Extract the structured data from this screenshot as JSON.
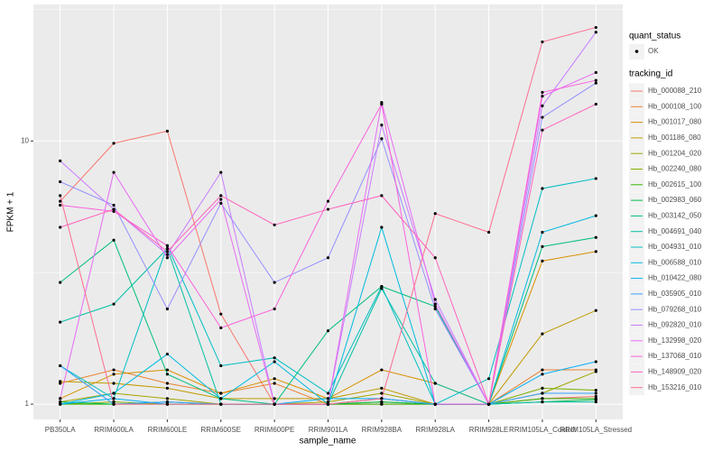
{
  "chart_data": {
    "type": "line",
    "x_label": "sample_name",
    "y_label": "FPKM + 1",
    "categories": [
      "PB350LA",
      "RRIM600LA",
      "RRIM600LE",
      "RRIM600SE",
      "RRIM600PE",
      "RRIM901LA",
      "RRIM928BA",
      "RRIM928LA",
      "RRIM928LE",
      "RRIM105LA_Control",
      "RRIM105LA_Stressed"
    ],
    "ylim": [
      0.875,
      33
    ],
    "yticks": [
      1,
      10
    ],
    "log_y": true,
    "grid": true,
    "point_color": "#000000",
    "shape_legend": {
      "title": "quant_status",
      "labels": [
        "OK"
      ]
    },
    "color_legend_title": "tracking_id",
    "series": [
      {
        "name": "Hb_000088_210",
        "color": "#F8766D",
        "values": [
          5.9,
          9.8,
          10.9,
          2.2,
          1.0,
          1.0,
          1.0,
          1.0,
          1.0,
          1.05,
          1.07
        ]
      },
      {
        "name": "Hb_000108_100",
        "color": "#EA8331",
        "values": [
          1.2,
          1.35,
          1.2,
          1.1,
          1.2,
          1.0,
          1.05,
          1.0,
          1.0,
          1.35,
          1.35
        ]
      },
      {
        "name": "Hb_001017_080",
        "color": "#D89000",
        "values": [
          1.05,
          1.3,
          1.35,
          1.1,
          1.25,
          1.05,
          1.35,
          1.2,
          1.0,
          3.5,
          3.8
        ]
      },
      {
        "name": "Hb_001186_080",
        "color": "#C09B00",
        "values": [
          1.22,
          1.2,
          1.15,
          1.05,
          1.05,
          1.05,
          1.15,
          1.0,
          1.0,
          1.85,
          2.27
        ]
      },
      {
        "name": "Hb_001204_020",
        "color": "#A3A500",
        "values": [
          1.02,
          1.1,
          1.05,
          1.0,
          1.0,
          1.02,
          1.1,
          1.0,
          1.0,
          1.1,
          1.33
        ]
      },
      {
        "name": "Hb_002240_080",
        "color": "#7CAE00",
        "values": [
          1.0,
          1.02,
          1.0,
          1.0,
          1.0,
          1.0,
          1.02,
          1.0,
          1.0,
          1.15,
          1.13
        ]
      },
      {
        "name": "Hb_002615_100",
        "color": "#39B600",
        "values": [
          1.0,
          1.0,
          1.0,
          1.0,
          1.0,
          1.0,
          1.0,
          1.0,
          1.0,
          1.05,
          1.05
        ]
      },
      {
        "name": "Hb_002983_060",
        "color": "#00BB4E",
        "values": [
          1.02,
          1.0,
          1.02,
          1.0,
          1.0,
          1.0,
          1.02,
          1.0,
          1.0,
          1.02,
          1.04
        ]
      },
      {
        "name": "Hb_003142_050",
        "color": "#00BF7D",
        "values": [
          2.9,
          4.2,
          1.3,
          1.05,
          1.0,
          1.9,
          2.8,
          2.35,
          1.0,
          3.97,
          4.3
        ]
      },
      {
        "name": "Hb_004691_040",
        "color": "#00C1A3",
        "values": [
          2.05,
          2.4,
          3.9,
          1.0,
          1.0,
          1.0,
          2.75,
          1.2,
          1.0,
          1.02,
          1.02
        ]
      },
      {
        "name": "Hb_004931_010",
        "color": "#00BFC4",
        "values": [
          1.4,
          1.05,
          4.0,
          1.4,
          1.5,
          1.1,
          2.8,
          1.0,
          1.25,
          6.6,
          7.2
        ]
      },
      {
        "name": "Hb_006588_010",
        "color": "#00BAE0",
        "values": [
          1.0,
          1.1,
          1.55,
          1.05,
          1.45,
          1.0,
          4.7,
          1.0,
          1.0,
          4.5,
          5.2
        ]
      },
      {
        "name": "Hb_010422_080",
        "color": "#00B0F6",
        "values": [
          1.0,
          1.05,
          1.0,
          1.0,
          1.0,
          1.05,
          1.05,
          1.0,
          1.0,
          1.3,
          1.45
        ]
      },
      {
        "name": "Hb_035905_010",
        "color": "#35A2FF",
        "values": [
          1.4,
          1.0,
          1.02,
          1.0,
          1.0,
          1.0,
          1.05,
          1.0,
          1.0,
          1.1,
          1.1
        ]
      },
      {
        "name": "Hb_079268_010",
        "color": "#9590FF",
        "values": [
          7.0,
          5.7,
          2.3,
          5.8,
          2.9,
          3.6,
          10.2,
          2.3,
          1.0,
          12.3,
          16.6
        ]
      },
      {
        "name": "Hb_092820_010",
        "color": "#C77CFF",
        "values": [
          8.4,
          5.5,
          3.7,
          7.6,
          1.0,
          1.0,
          11.5,
          2.5,
          1.0,
          13.6,
          25.9
        ]
      },
      {
        "name": "Hb_132998_020",
        "color": "#E76BF3",
        "values": [
          1.05,
          7.6,
          3.6,
          6.0,
          1.0,
          1.0,
          14.0,
          2.4,
          1.0,
          14.8,
          18.2
        ]
      },
      {
        "name": "Hb_137068_010",
        "color": "#FA62DB",
        "values": [
          5.7,
          5.4,
          4.0,
          1.95,
          2.3,
          5.9,
          13.8,
          1.0,
          1.0,
          15.3,
          17.0
        ]
      },
      {
        "name": "Hb_148909_020",
        "color": "#FF62BC",
        "values": [
          4.7,
          5.5,
          3.8,
          6.2,
          4.8,
          5.5,
          6.2,
          3.6,
          1.0,
          11.0,
          13.8
        ]
      },
      {
        "name": "Hb_153216_010",
        "color": "#FF6C91",
        "values": [
          6.2,
          1.0,
          1.0,
          1.0,
          1.0,
          1.0,
          1.05,
          5.3,
          4.5,
          23.8,
          27.0
        ]
      }
    ]
  }
}
